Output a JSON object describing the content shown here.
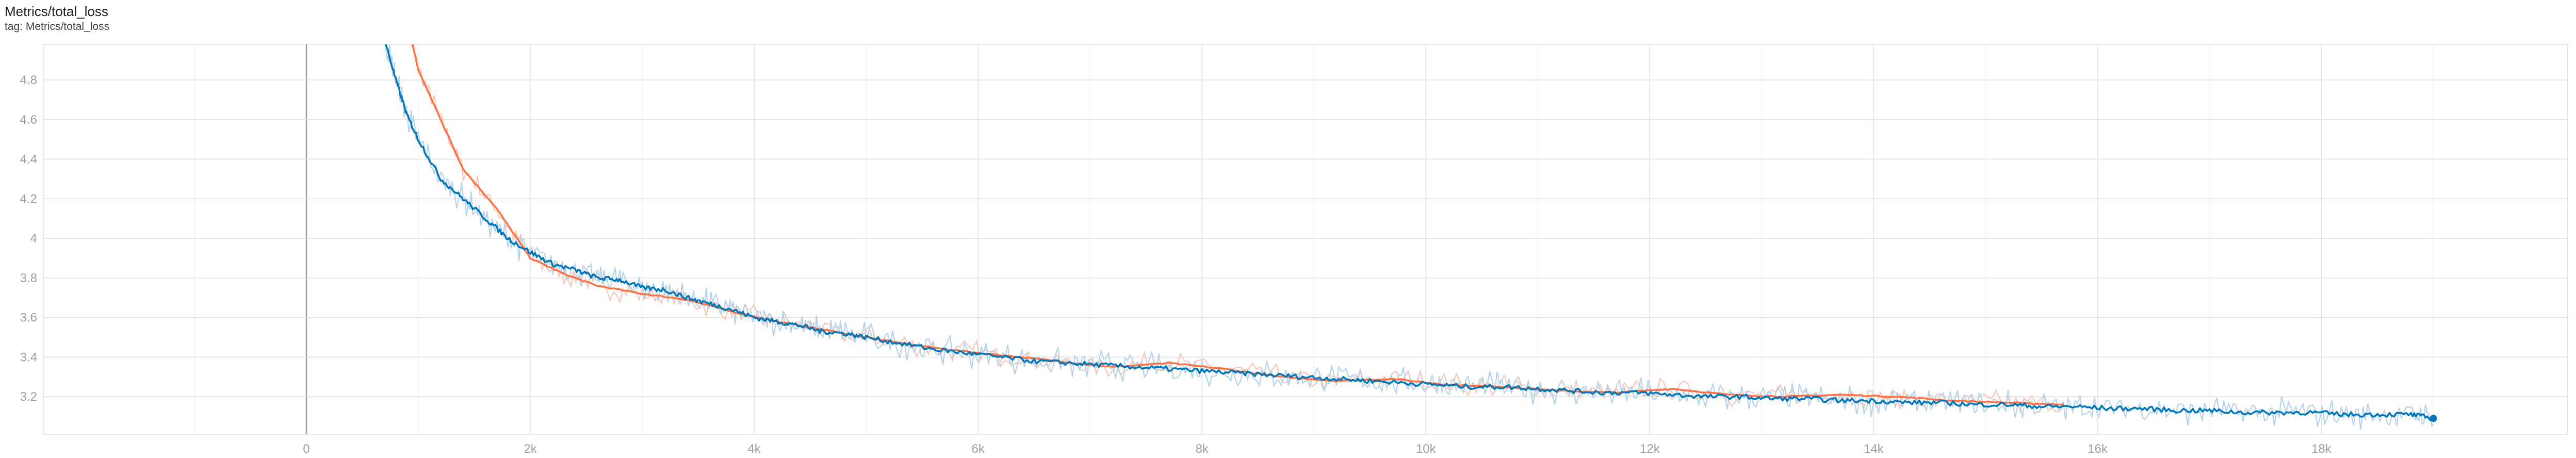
{
  "card": {
    "title": "Metrics/total_loss",
    "subtitle": "tag: Metrics/total_loss"
  },
  "chart_data": {
    "type": "line",
    "title": "Metrics/total_loss",
    "xlabel": "",
    "ylabel": "",
    "xlim": [
      -2350,
      20200
    ],
    "ylim": [
      3.01,
      4.98
    ],
    "x_ticks": [
      0,
      2000,
      4000,
      6000,
      8000,
      10000,
      12000,
      14000,
      16000,
      18000
    ],
    "x_tick_labels": [
      "0",
      "2k",
      "4k",
      "6k",
      "8k",
      "10k",
      "12k",
      "14k",
      "16k",
      "18k"
    ],
    "y_ticks": [
      3.2,
      3.4,
      3.6,
      3.8,
      4.0,
      4.2,
      4.4,
      4.6,
      4.8
    ],
    "y_tick_labels": [
      "3.2",
      "3.4",
      "3.6",
      "3.8",
      "4",
      "4.2",
      "4.4",
      "4.6",
      "4.8"
    ],
    "grid": true,
    "legend": "none",
    "series": [
      {
        "color": "#ff7043",
        "raw_color": "#f6c6b8",
        "x": [
          900,
          1000,
          1200,
          1400,
          1700,
          2000,
          2300,
          2600,
          3000,
          3400,
          3800,
          4200,
          4700,
          5200,
          5700,
          6200,
          6700,
          7200,
          7700,
          8200,
          8700,
          9200,
          9700,
          10200,
          10700,
          11200,
          11700,
          12200,
          12700,
          13200,
          13700,
          14200,
          14700,
          15200,
          15700
        ],
        "y": [
          5.1,
          4.85,
          4.6,
          4.35,
          4.15,
          3.9,
          3.82,
          3.76,
          3.72,
          3.69,
          3.63,
          3.58,
          3.53,
          3.48,
          3.44,
          3.41,
          3.38,
          3.35,
          3.37,
          3.34,
          3.3,
          3.28,
          3.29,
          3.26,
          3.25,
          3.23,
          3.22,
          3.24,
          3.21,
          3.2,
          3.21,
          3.2,
          3.18,
          3.17,
          3.16
        ]
      },
      {
        "color": "#0077bb",
        "raw_color": "#b5d3ea",
        "x": [
          700,
          800,
          900,
          1000,
          1200,
          1400,
          1600,
          1800,
          2000,
          2200,
          2400,
          2600,
          2800,
          3000,
          3200,
          3400,
          3600,
          3800,
          4000,
          4200,
          4400,
          4600,
          4800,
          5000,
          5300,
          5600,
          5900,
          6200,
          6500,
          6800,
          7100,
          7400,
          7700,
          8000,
          8300,
          8600,
          8900,
          9200,
          9500,
          9800,
          10100,
          10400,
          10700,
          11000,
          11300,
          11600,
          11900,
          12200,
          12500,
          12800,
          13100,
          13400,
          13700,
          14000,
          14300,
          14600,
          14900,
          15200,
          15500,
          15800,
          16100,
          16400,
          16700,
          17000,
          17300,
          17600,
          17900,
          18200,
          18500,
          18800,
          19000
        ],
        "y": [
          5.0,
          4.8,
          4.62,
          4.5,
          4.3,
          4.2,
          4.1,
          4.0,
          3.93,
          3.87,
          3.84,
          3.8,
          3.79,
          3.75,
          3.74,
          3.7,
          3.67,
          3.64,
          3.6,
          3.58,
          3.56,
          3.53,
          3.52,
          3.5,
          3.47,
          3.44,
          3.42,
          3.4,
          3.38,
          3.37,
          3.36,
          3.35,
          3.34,
          3.33,
          3.32,
          3.31,
          3.3,
          3.29,
          3.28,
          3.27,
          3.26,
          3.25,
          3.25,
          3.24,
          3.23,
          3.22,
          3.22,
          3.21,
          3.2,
          3.2,
          3.19,
          3.19,
          3.18,
          3.18,
          3.17,
          3.17,
          3.16,
          3.16,
          3.15,
          3.15,
          3.14,
          3.14,
          3.13,
          3.13,
          3.12,
          3.12,
          3.12,
          3.11,
          3.11,
          3.11,
          3.09
        ]
      }
    ]
  }
}
